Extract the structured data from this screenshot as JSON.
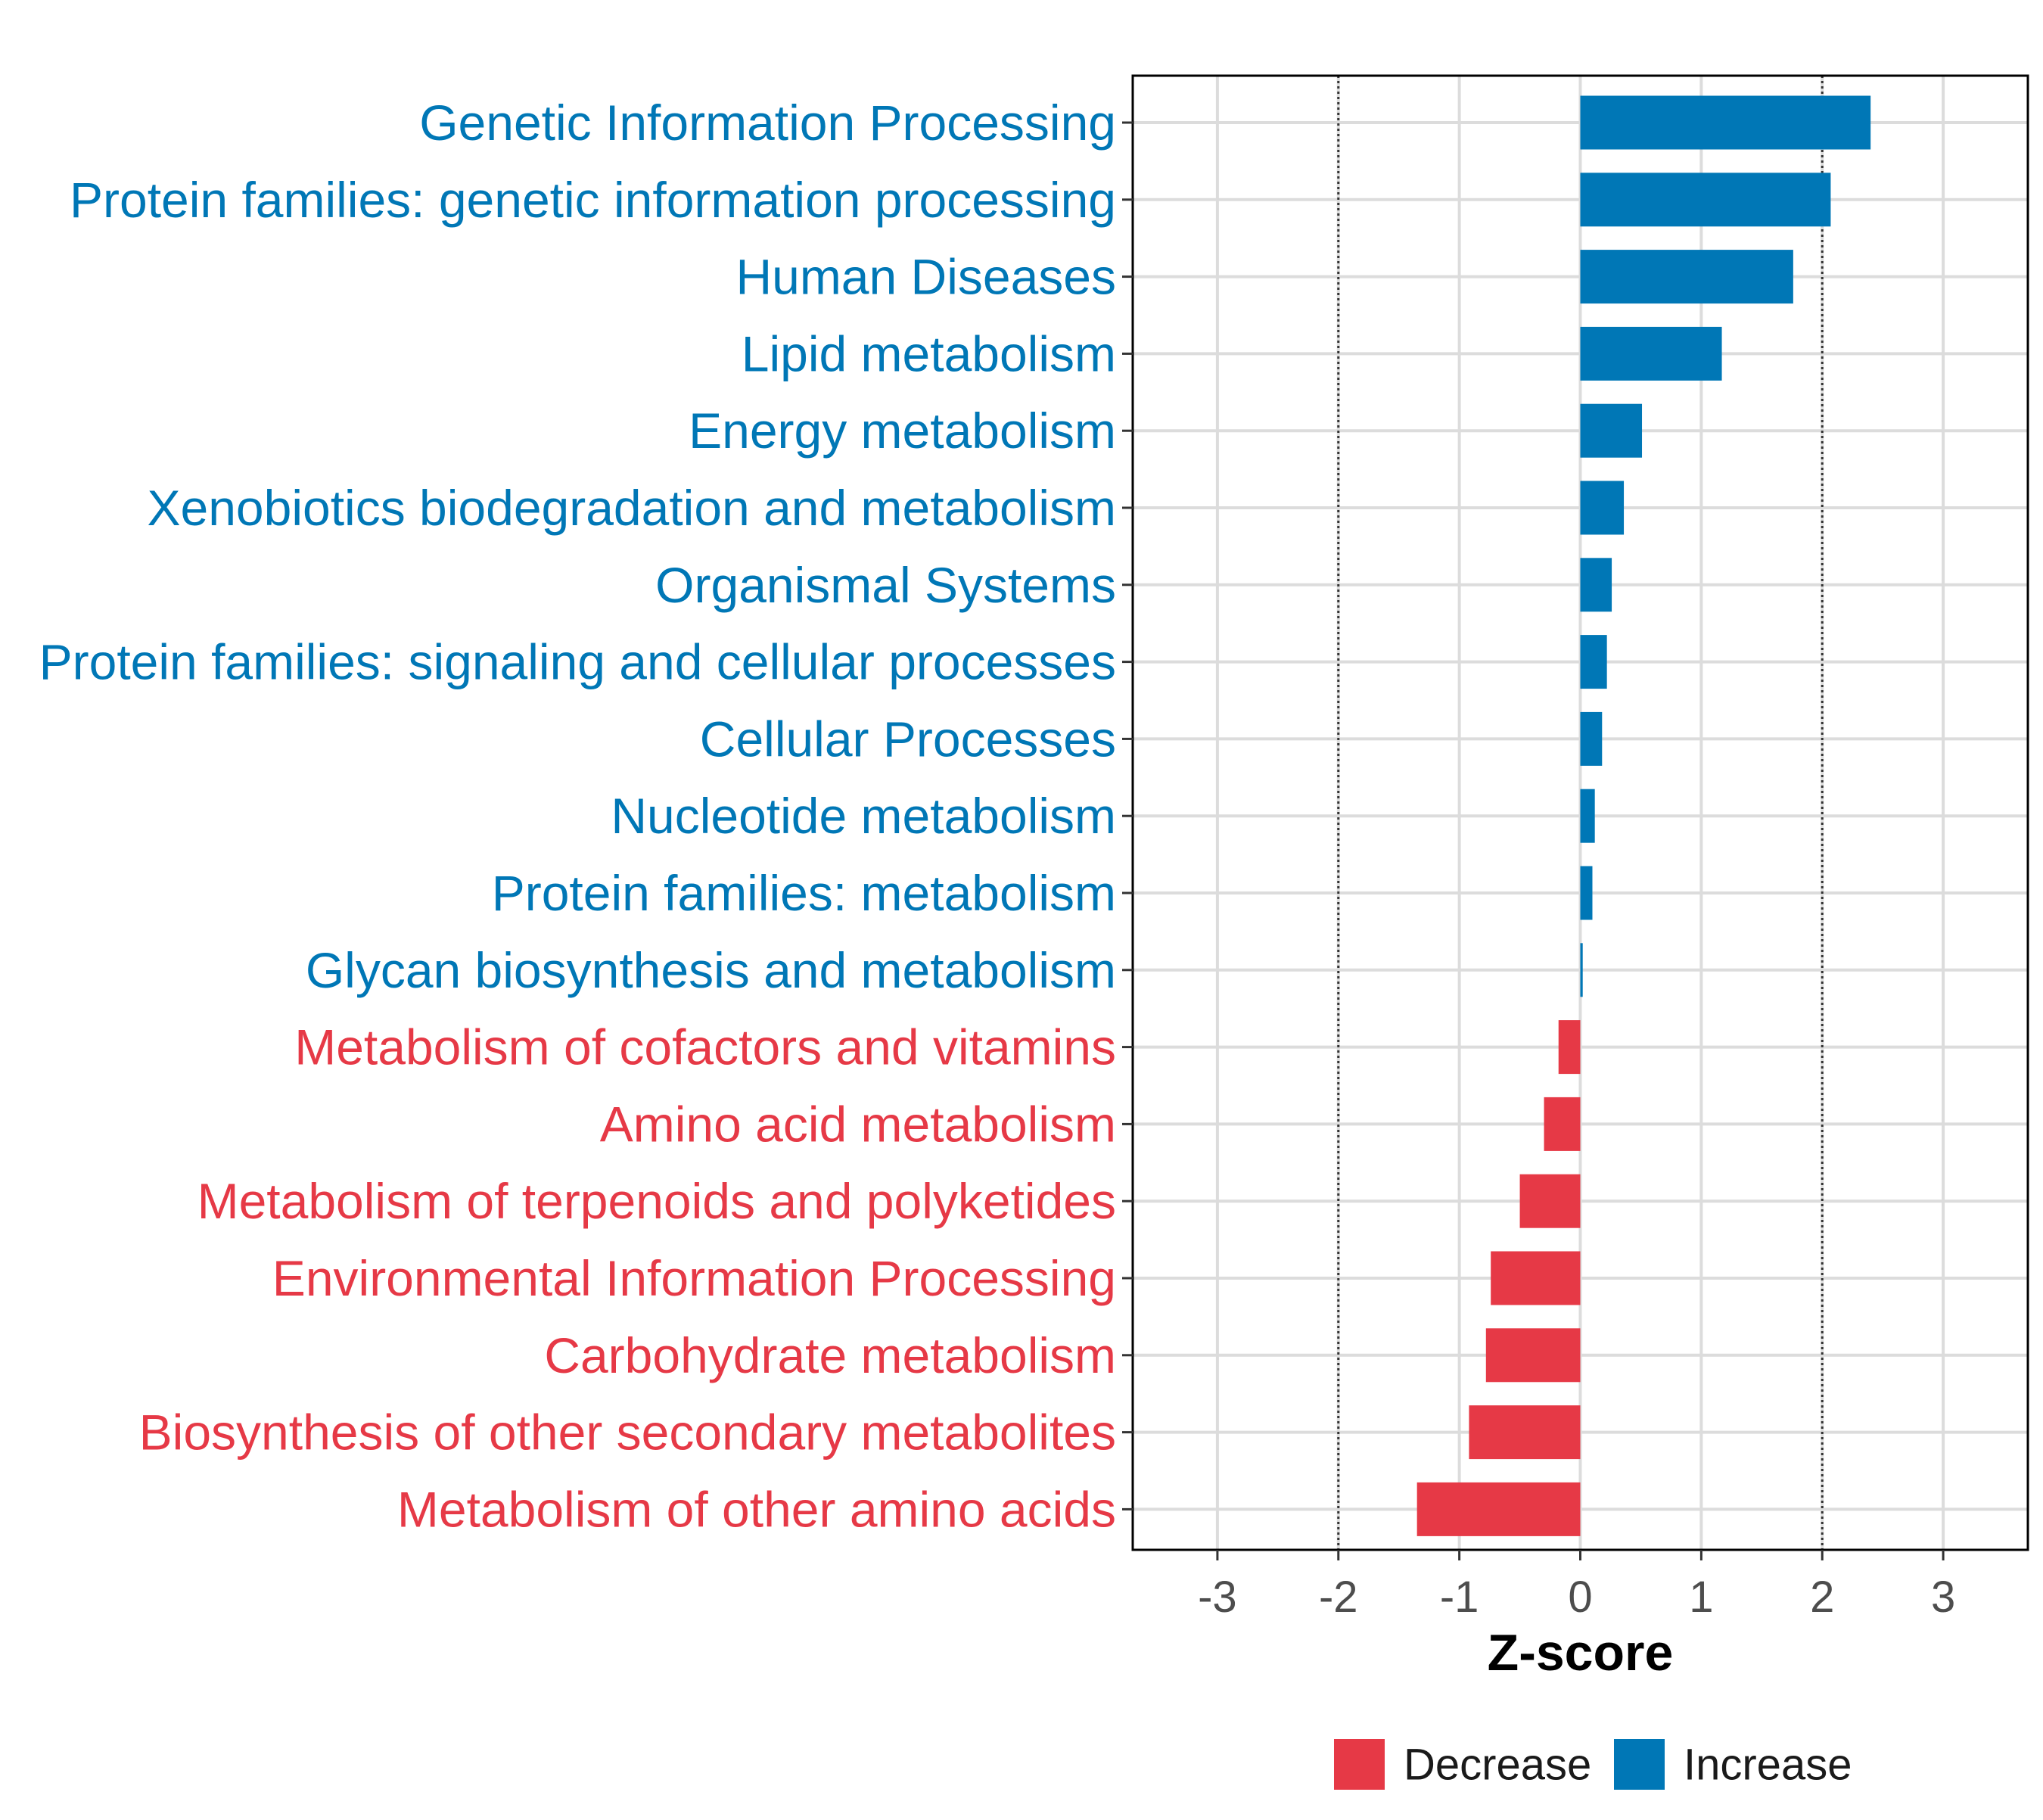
{
  "chart_data": {
    "type": "bar",
    "orientation": "horizontal",
    "title": "",
    "xlabel": "Z-score",
    "ylabel": "",
    "xlim": [
      -3.7,
      3.7
    ],
    "xticks": [
      -3,
      -2,
      -1,
      0,
      1,
      2,
      3
    ],
    "xtick_labels": [
      "-3",
      "-2",
      "-1",
      "0",
      "1",
      "2",
      "3"
    ],
    "threshold_lines": [
      -2,
      2
    ],
    "grid": true,
    "legend_position": "bottom",
    "series": [
      {
        "name": "Decrease",
        "color": "#E63946"
      },
      {
        "name": "Increase",
        "color": "#0077B6"
      }
    ],
    "bars": [
      {
        "label": "Genetic Information Processing",
        "value": 2.4,
        "group": "Increase"
      },
      {
        "label": "Protein families: genetic information processing",
        "value": 2.07,
        "group": "Increase"
      },
      {
        "label": "Human Diseases",
        "value": 1.76,
        "group": "Increase"
      },
      {
        "label": "Lipid metabolism",
        "value": 1.17,
        "group": "Increase"
      },
      {
        "label": "Energy metabolism",
        "value": 0.51,
        "group": "Increase"
      },
      {
        "label": "Xenobiotics biodegradation and metabolism",
        "value": 0.36,
        "group": "Increase"
      },
      {
        "label": "Organismal Systems",
        "value": 0.26,
        "group": "Increase"
      },
      {
        "label": "Protein families: signaling and cellular processes",
        "value": 0.22,
        "group": "Increase"
      },
      {
        "label": "Cellular Processes",
        "value": 0.18,
        "group": "Increase"
      },
      {
        "label": "Nucleotide metabolism",
        "value": 0.12,
        "group": "Increase"
      },
      {
        "label": "Protein families: metabolism",
        "value": 0.1,
        "group": "Increase"
      },
      {
        "label": "Glycan biosynthesis and metabolism",
        "value": 0.02,
        "group": "Increase"
      },
      {
        "label": "Metabolism of cofactors and vitamins",
        "value": -0.18,
        "group": "Decrease"
      },
      {
        "label": "Amino acid metabolism",
        "value": -0.3,
        "group": "Decrease"
      },
      {
        "label": "Metabolism of terpenoids and polyketides",
        "value": -0.5,
        "group": "Decrease"
      },
      {
        "label": "Environmental Information Processing",
        "value": -0.74,
        "group": "Decrease"
      },
      {
        "label": "Carbohydrate metabolism",
        "value": -0.78,
        "group": "Decrease"
      },
      {
        "label": "Biosynthesis of other secondary metabolites",
        "value": -0.92,
        "group": "Decrease"
      },
      {
        "label": "Metabolism of other amino acids",
        "value": -1.35,
        "group": "Decrease"
      }
    ]
  }
}
